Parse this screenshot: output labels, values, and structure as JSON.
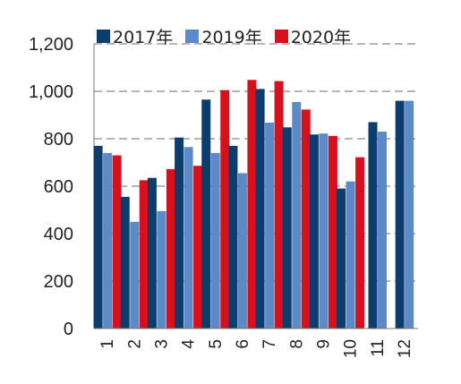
{
  "chart_data": {
    "type": "bar",
    "categories": [
      "1",
      "2",
      "3",
      "4",
      "5",
      "6",
      "7",
      "8",
      "9",
      "10",
      "11",
      "12"
    ],
    "series": [
      {
        "name": "2017年",
        "color": "#0b3d6e",
        "values": [
          770,
          555,
          635,
          805,
          965,
          770,
          1010,
          848,
          818,
          590,
          870,
          960
        ]
      },
      {
        "name": "2019年",
        "color": "#5b8ac6",
        "values": [
          740,
          450,
          495,
          765,
          740,
          655,
          868,
          955,
          822,
          620,
          830,
          960
        ]
      },
      {
        "name": "2020年",
        "color": "#d6101c",
        "values": [
          730,
          625,
          672,
          686,
          1005,
          1048,
          1043,
          923,
          812,
          722,
          null,
          null
        ]
      }
    ],
    "title": "",
    "xlabel": "",
    "ylabel": "",
    "ylim": [
      0,
      1200
    ],
    "yticks": [
      "0",
      "200",
      "400",
      "600",
      "800",
      "1,000",
      "1,200"
    ],
    "ytick_values": [
      0,
      200,
      400,
      600,
      800,
      1000,
      1200
    ],
    "grid": "dashed horizontal",
    "legend_position": "top-left"
  }
}
